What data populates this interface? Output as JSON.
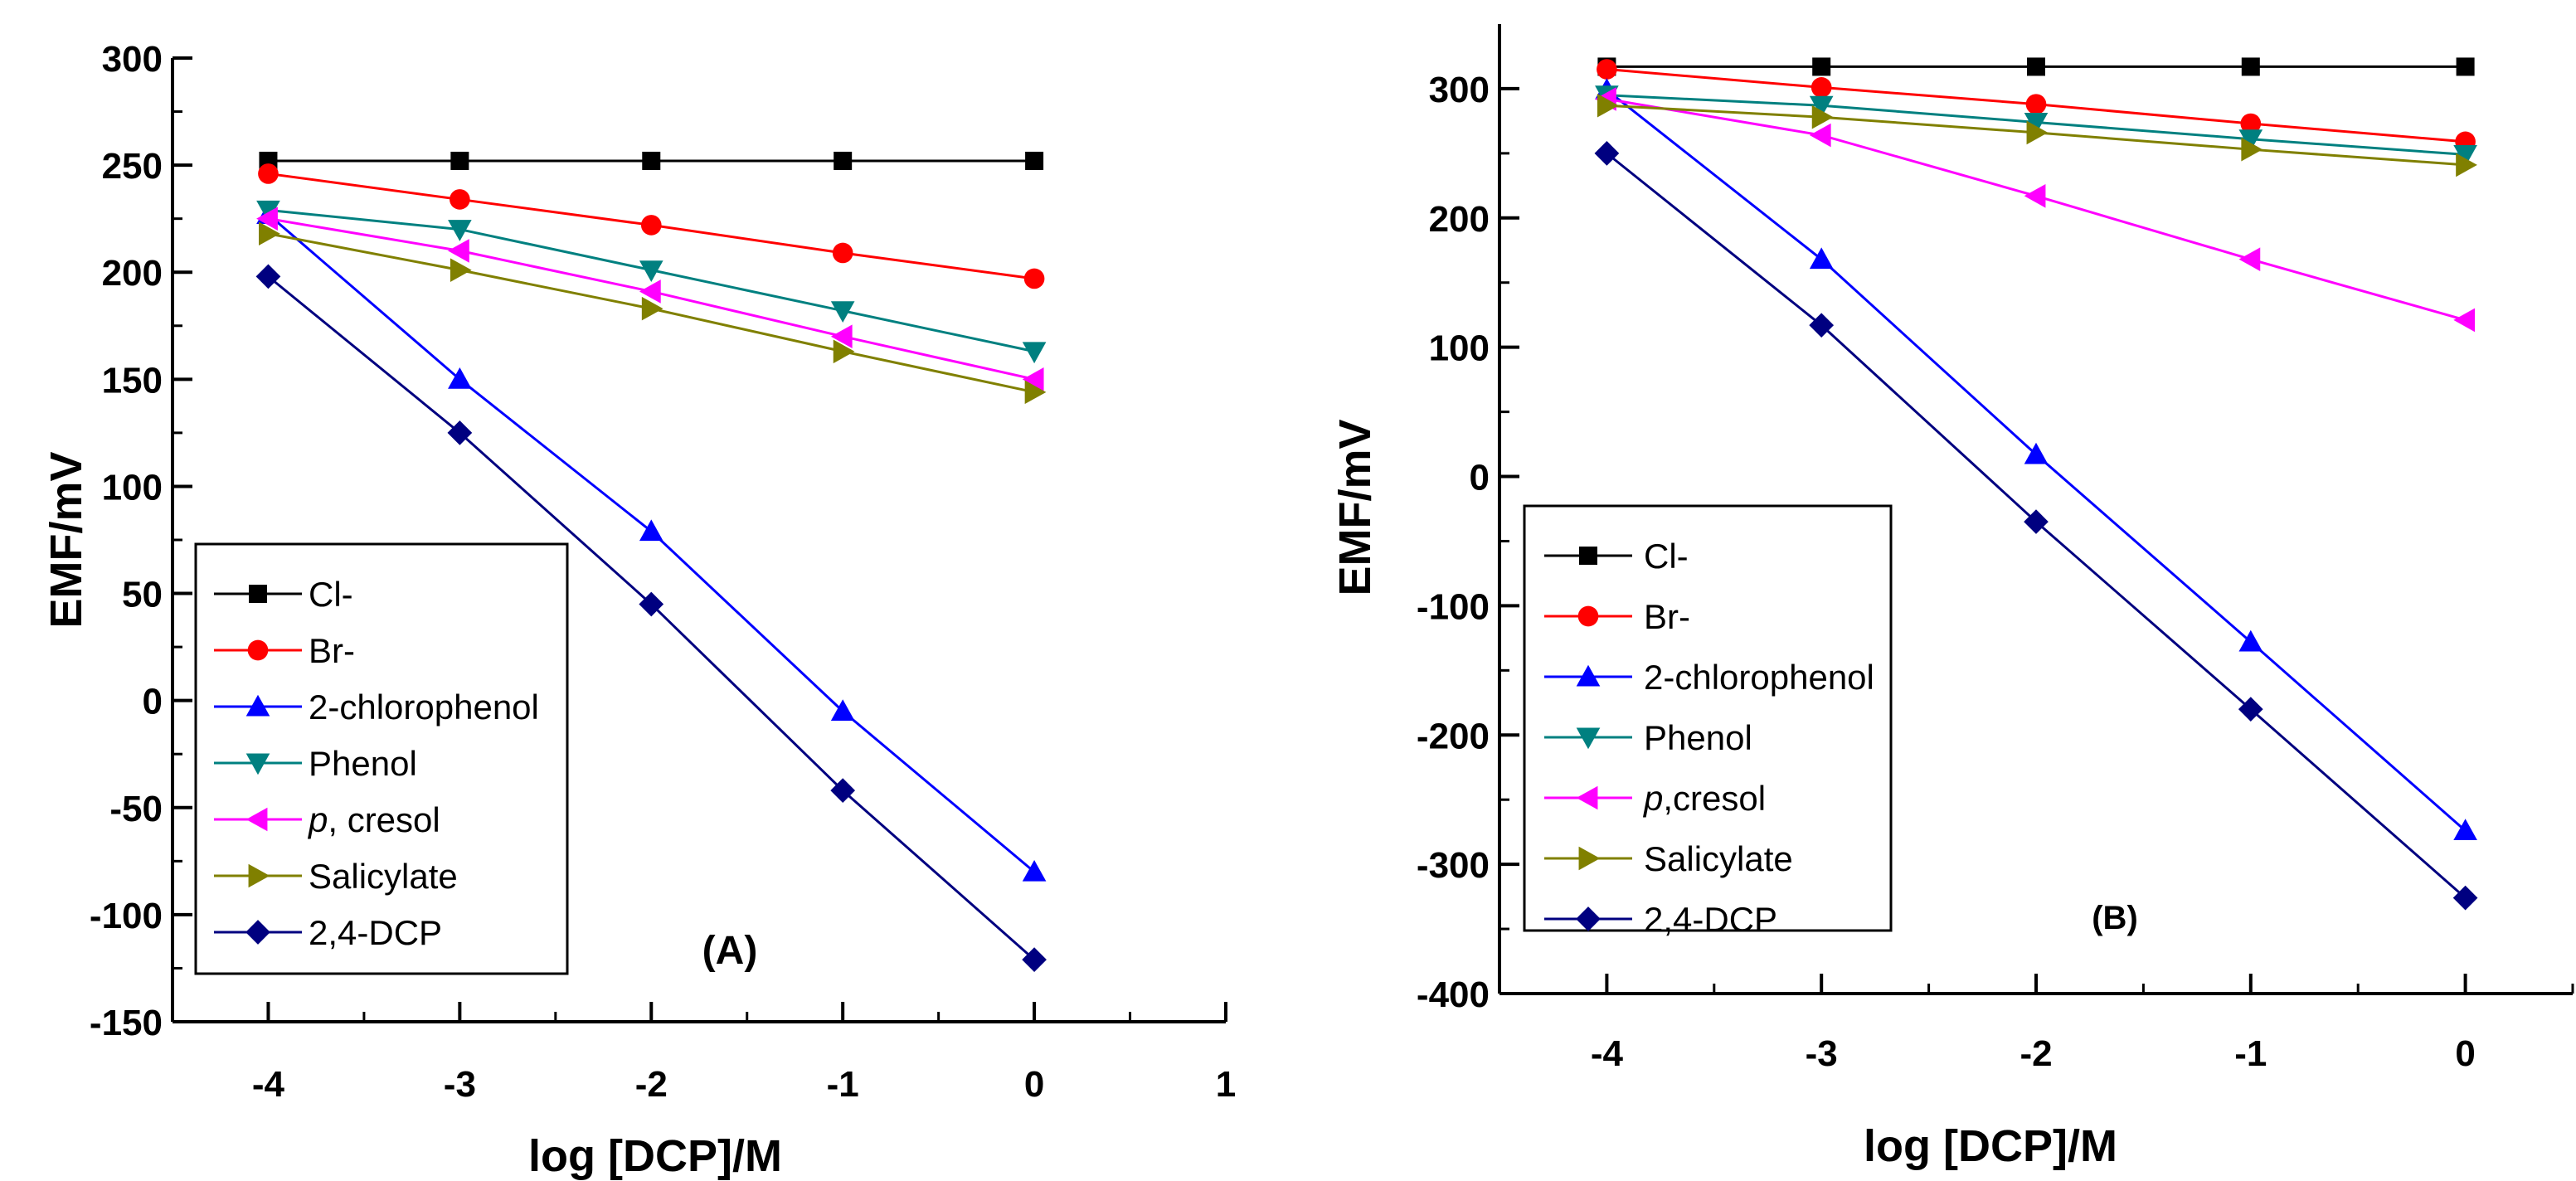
{
  "chart_data": [
    {
      "panel_label": "(A)",
      "type": "line",
      "xlabel": "log [DCP]/M",
      "ylabel": "EMF/mV",
      "xlim": [
        -4.5,
        1
      ],
      "ylim": [
        -150,
        300
      ],
      "xticks": [
        -4,
        -3,
        -2,
        -1,
        0,
        1
      ],
      "xtick_labels": [
        "-4",
        "-3",
        "-2",
        "-1",
        "0",
        "1"
      ],
      "yticks": [
        -150,
        -100,
        -50,
        0,
        50,
        100,
        150,
        200,
        250,
        300
      ],
      "ytick_labels": [
        "-150",
        "-100",
        "-50",
        "0",
        "50",
        "100",
        "150",
        "200",
        "250",
        "300"
      ],
      "legend_position": "bottom-left",
      "x": [
        -4,
        -3,
        -2,
        -1,
        0
      ],
      "series": [
        {
          "name": "Cl-",
          "name_prefix": "",
          "name_main": "Cl-",
          "color": "#000000",
          "marker": "square",
          "values": [
            252,
            252,
            252,
            252,
            252
          ]
        },
        {
          "name": "Br-",
          "name_prefix": "",
          "name_main": "Br-",
          "color": "#ff0000",
          "marker": "circle",
          "values": [
            246,
            234,
            222,
            209,
            197
          ]
        },
        {
          "name": "2-chlorophenol",
          "name_prefix": "",
          "name_main": "2-chlorophenol",
          "color": "#0000ff",
          "marker": "triangle-up",
          "values": [
            227,
            150,
            79,
            -5,
            -80
          ]
        },
        {
          "name": "Phenol",
          "name_prefix": "",
          "name_main": "Phenol",
          "color": "#008080",
          "marker": "triangle-down",
          "values": [
            229,
            220,
            201,
            182,
            163
          ]
        },
        {
          "name": "p, cresol",
          "name_prefix": "p",
          "name_main": ", cresol",
          "color": "#ff00ff",
          "marker": "triangle-left",
          "values": [
            225,
            210,
            191,
            170,
            150
          ]
        },
        {
          "name": "Salicylate",
          "name_prefix": "",
          "name_main": "Salicylate",
          "color": "#808000",
          "marker": "triangle-right",
          "values": [
            218,
            201,
            183,
            163,
            144
          ]
        },
        {
          "name": "2,4-DCP",
          "name_prefix": "",
          "name_main": "2,4-DCP",
          "color": "#000080",
          "marker": "diamond",
          "values": [
            198,
            125,
            45,
            -42,
            -121
          ]
        }
      ]
    },
    {
      "panel_label": "(B)",
      "type": "line",
      "xlabel": "log [DCP]/M",
      "ylabel": "EMF/mV",
      "xlim": [
        -4.5,
        0.5
      ],
      "ylim": [
        -400,
        350
      ],
      "xticks": [
        -4,
        -3,
        -2,
        -1,
        0
      ],
      "xtick_labels": [
        "-4",
        "-3",
        "-2",
        "-1",
        "0"
      ],
      "yticks": [
        -400,
        -300,
        -200,
        -100,
        0,
        100,
        200,
        300
      ],
      "ytick_labels": [
        "-400",
        "-300",
        "-200",
        "-100",
        "0",
        "100",
        "200",
        "300"
      ],
      "legend_position": "bottom-left",
      "x": [
        -4,
        -3,
        -2,
        -1,
        0
      ],
      "series": [
        {
          "name": "Cl-",
          "name_prefix": "",
          "name_main": "Cl-",
          "color": "#000000",
          "marker": "square",
          "values": [
            317,
            317,
            317,
            317,
            317
          ]
        },
        {
          "name": "Br-",
          "name_prefix": "",
          "name_main": "Br-",
          "color": "#ff0000",
          "marker": "circle",
          "values": [
            315,
            301,
            288,
            273,
            259
          ]
        },
        {
          "name": "2-chlorophenol",
          "name_prefix": "",
          "name_main": "2-chlorophenol",
          "color": "#0000ff",
          "marker": "triangle-up",
          "values": [
            299,
            168,
            17,
            -128,
            -274
          ]
        },
        {
          "name": "Phenol",
          "name_prefix": "",
          "name_main": "Phenol",
          "color": "#008080",
          "marker": "triangle-down",
          "values": [
            295,
            287,
            274,
            261,
            249
          ]
        },
        {
          "name": "p,cresol",
          "name_prefix": "p",
          "name_main": ",cresol",
          "color": "#ff00ff",
          "marker": "triangle-left",
          "values": [
            292,
            264,
            217,
            168,
            121
          ]
        },
        {
          "name": "Salicylate",
          "name_prefix": "",
          "name_main": "Salicylate",
          "color": "#808000",
          "marker": "triangle-right",
          "values": [
            287,
            278,
            266,
            253,
            241
          ]
        },
        {
          "name": "2,4-DCP",
          "name_prefix": "",
          "name_main": "2,4-DCP",
          "color": "#000080",
          "marker": "diamond",
          "values": [
            250,
            117,
            -35,
            -180,
            -326
          ]
        }
      ]
    }
  ]
}
